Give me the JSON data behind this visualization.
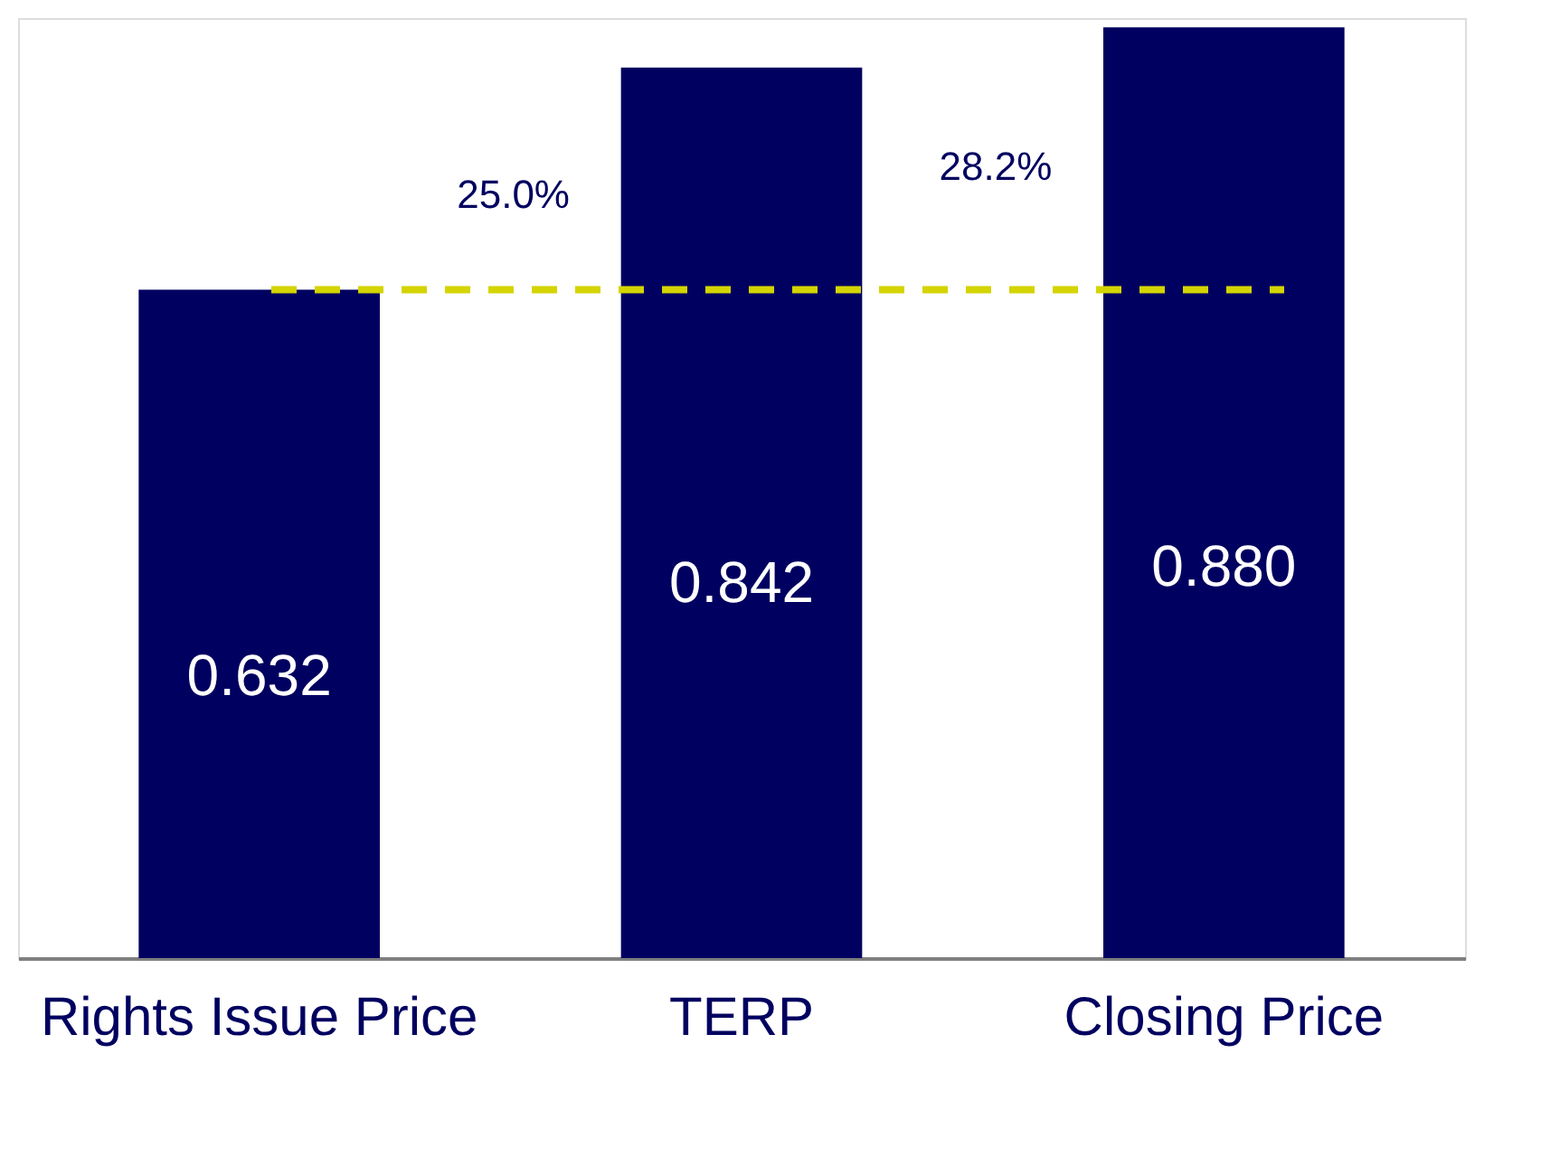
{
  "chart_data": {
    "type": "bar",
    "categories": [
      "Rights Issue Price",
      "TERP",
      "Closing Price"
    ],
    "values": [
      0.632,
      0.842,
      0.88
    ],
    "value_labels": [
      "0.632",
      "0.842",
      "0.880"
    ],
    "color": "#000060",
    "ref_lines": [
      {
        "axis": "y",
        "value": 0.632,
        "color": "#d4d400",
        "line_style": "dashed"
      }
    ],
    "annotations": [
      "25.0%",
      "28.2%"
    ],
    "tick_labels": "x",
    "grid": false
  }
}
